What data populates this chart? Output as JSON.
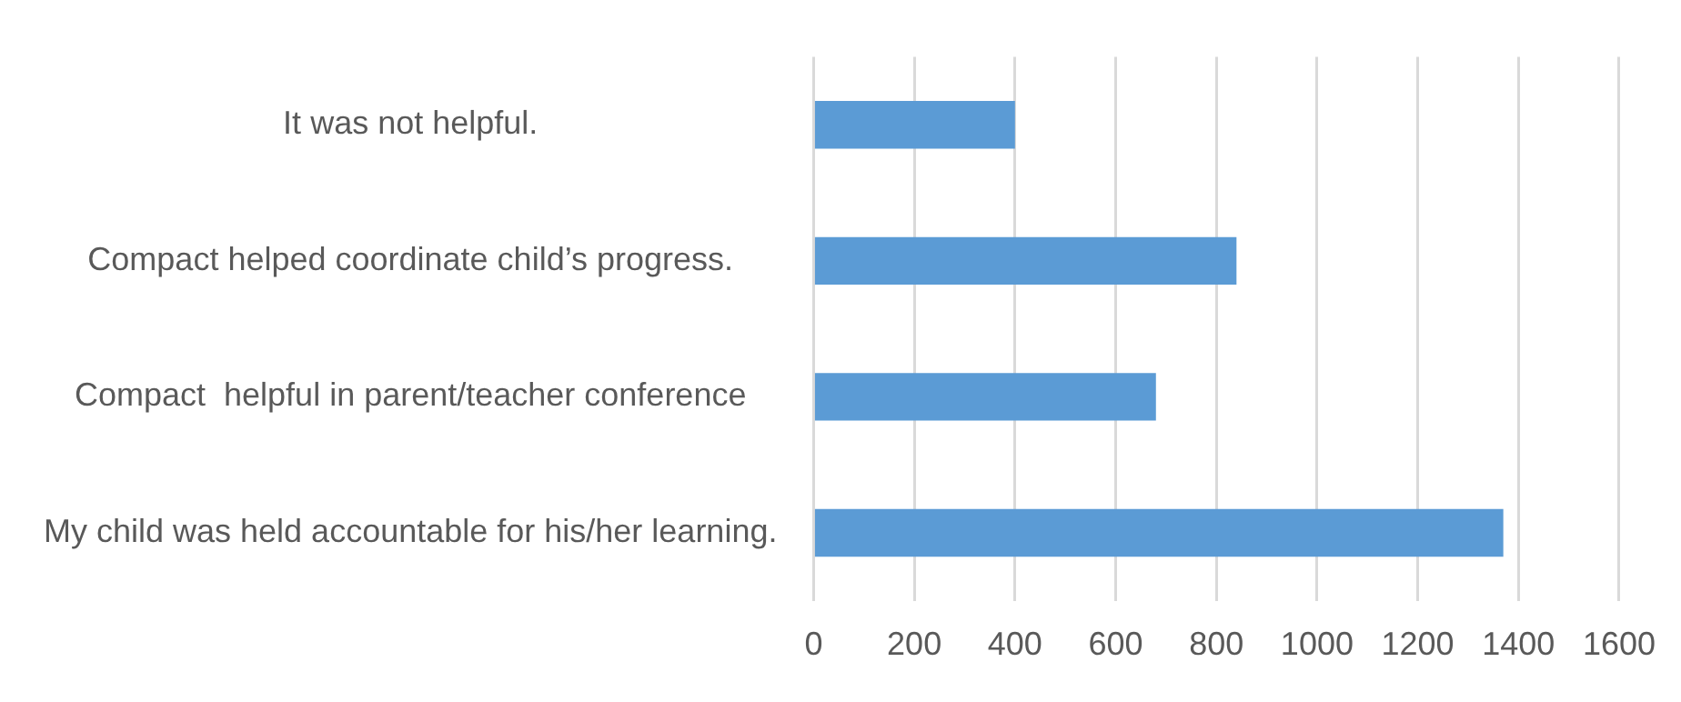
{
  "chart_data": {
    "type": "bar",
    "orientation": "horizontal",
    "categories": [
      "It was not helpful.",
      "Compact helped coordinate child’s progress.",
      "Compact  helpful in parent/teacher conference",
      "My child was held accountable for his/her learning."
    ],
    "values": [
      400,
      840,
      680,
      1370
    ],
    "color": "#5b9bd5",
    "xlim": [
      0,
      1600
    ],
    "xticks": [
      0,
      200,
      400,
      600,
      800,
      1000,
      1200,
      1400,
      1600
    ],
    "grid": "x",
    "legend": false
  }
}
